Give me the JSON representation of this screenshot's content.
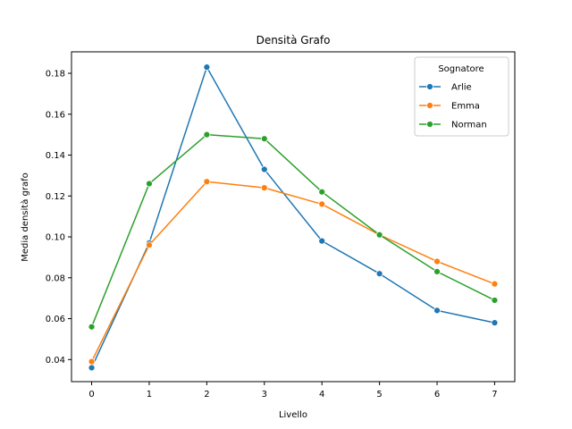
{
  "chart_data": {
    "type": "line",
    "title": "Densità Grafo",
    "xlabel": "Livello",
    "ylabel": "Media densità grafo",
    "x": [
      0,
      1,
      2,
      3,
      4,
      5,
      6,
      7
    ],
    "xlim": [
      -0.35,
      7.35
    ],
    "ylim": [
      0.0292,
      0.1905
    ],
    "xticks": [
      0,
      1,
      2,
      3,
      4,
      5,
      6,
      7
    ],
    "xtick_labels": [
      "0",
      "1",
      "2",
      "3",
      "4",
      "5",
      "6",
      "7"
    ],
    "yticks": [
      0.04,
      0.06,
      0.08,
      0.1,
      0.12,
      0.14,
      0.16,
      0.18
    ],
    "ytick_labels": [
      "0.04",
      "0.06",
      "0.08",
      "0.10",
      "0.12",
      "0.14",
      "0.16",
      "0.18"
    ],
    "grid": false,
    "markers": true,
    "legend": {
      "title": "Sognatore",
      "placement": "top-right"
    },
    "series": [
      {
        "name": "Arlie",
        "color": "#1f77b4",
        "values": [
          0.036,
          0.097,
          0.183,
          0.133,
          0.098,
          0.082,
          0.064,
          0.058
        ]
      },
      {
        "name": "Emma",
        "color": "#ff7f0e",
        "values": [
          0.039,
          0.096,
          0.127,
          0.124,
          0.116,
          0.101,
          0.088,
          0.077
        ]
      },
      {
        "name": "Norman",
        "color": "#2ca02c",
        "values": [
          0.056,
          0.126,
          0.15,
          0.148,
          0.122,
          0.101,
          0.083,
          0.069
        ]
      }
    ]
  }
}
